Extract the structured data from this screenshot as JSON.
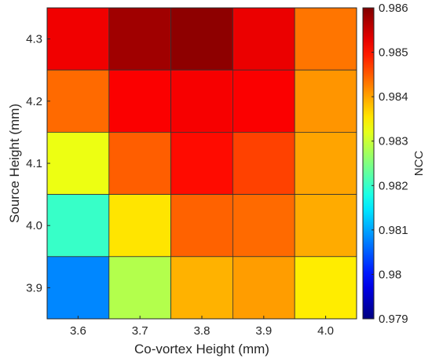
{
  "chart_data": {
    "type": "heatmap",
    "title": "",
    "xlabel": "Co-vortex Height (mm)",
    "ylabel": "Source Height (mm)",
    "x_categories": [
      "3.6",
      "3.7",
      "3.8",
      "3.9",
      "4.0"
    ],
    "y_categories": [
      "4.3",
      "4.2",
      "4.1",
      "4.0",
      "3.9"
    ],
    "values": [
      [
        0.98522,
        0.98578,
        0.9859,
        0.98526,
        0.98432
      ],
      [
        0.9844,
        0.98515,
        0.98518,
        0.98515,
        0.9841
      ],
      [
        0.98325,
        0.98448,
        0.98505,
        0.98468,
        0.984
      ],
      [
        0.982,
        0.98355,
        0.98445,
        0.9844,
        0.98395
      ],
      [
        0.9808,
        0.98285,
        0.9839,
        0.98405,
        0.9835
      ]
    ],
    "colorbar": {
      "label": "NCC",
      "min": 0.979,
      "max": 0.986,
      "ticks": [
        "0.979",
        "0.98",
        "0.981",
        "0.982",
        "0.983",
        "0.984",
        "0.985",
        "0.986"
      ],
      "colormap": "jet"
    },
    "grid": false,
    "cell_edge_color": "#333333"
  }
}
